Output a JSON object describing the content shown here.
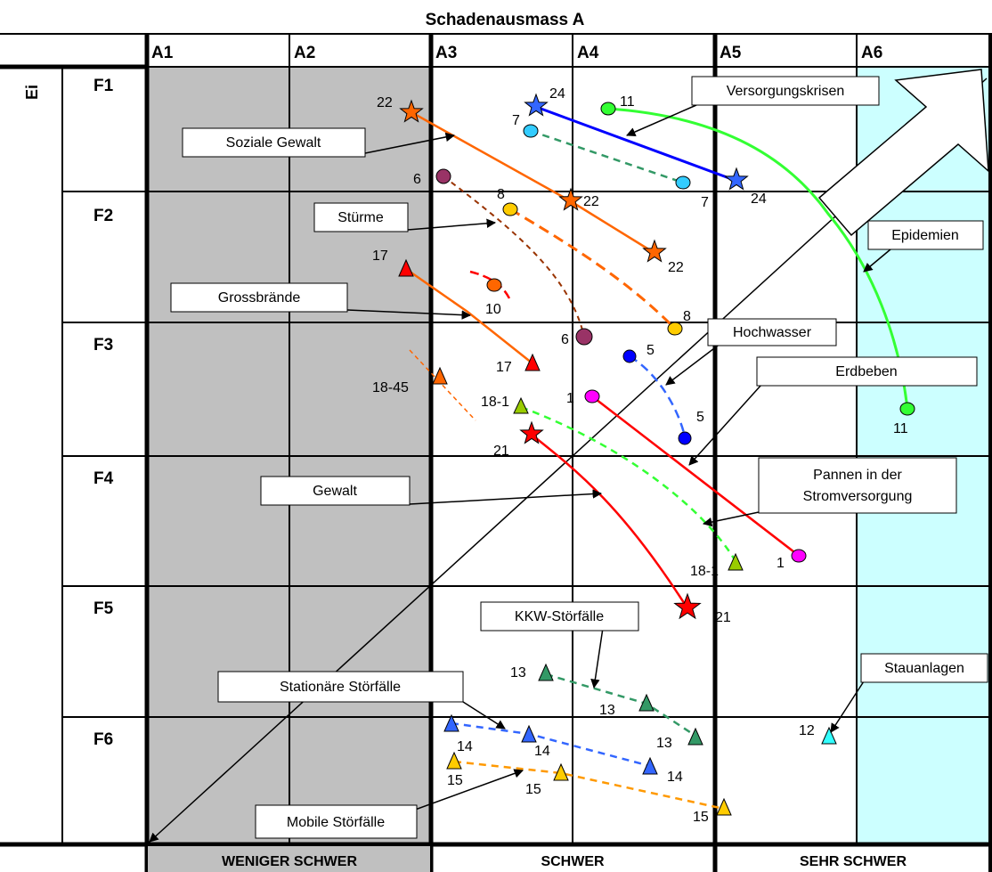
{
  "header": {
    "title": "Schadenausmass A",
    "columns": [
      "A1",
      "A2",
      "A3",
      "A4",
      "A5",
      "A6"
    ],
    "left_axis_label": "Ei"
  },
  "rows": [
    "F1",
    "F2",
    "F3",
    "F4",
    "F5",
    "F6"
  ],
  "footer": {
    "groups": [
      "WENIGER SCHWER",
      "SCHWER",
      "SEHR SCHWER"
    ]
  },
  "callouts": {
    "versorgungskrisen": "Versorgungskrisen",
    "soziale_gewalt": "Soziale Gewalt",
    "stuerme": "Stürme",
    "epidemien": "Epidemien",
    "grossbraende": "Grossbrände",
    "hochwasser": "Hochwasser",
    "erdbeben": "Erdbeben",
    "pannen_l1": "Pannen in der",
    "pannen_l2": "Stromversorgung",
    "gewalt": "Gewalt",
    "kkw": "KKW-Störfälle",
    "stationaere": "Stationäre Störfälle",
    "stauanlagen": "Stauanlagen",
    "mobile": "Mobile Störfälle"
  },
  "labels": {
    "l22a": "22",
    "l24a": "24",
    "l11a": "11",
    "l7a": "7",
    "l7b": "7",
    "l24b": "24",
    "l6a": "6",
    "l8a": "8",
    "l22b": "22",
    "l22c": "22",
    "l17a": "17",
    "l10": "10",
    "l8b": "8",
    "l6b": "6",
    "l5a": "5",
    "l5b": "5",
    "l17b": "17",
    "l1845": "18-45",
    "l1a": "1",
    "l181a": "18-1",
    "l21a": "21",
    "l11b": "11",
    "l181b": "18-1",
    "l1b": "1",
    "l21b": "21",
    "l13a": "13",
    "l13b": "13",
    "l13c": "13",
    "l12": "12",
    "l14a": "14",
    "l14b": "14",
    "l14c": "14",
    "l15a": "15",
    "l15b": "15",
    "l15c": "15"
  },
  "colors": {
    "grey_zone": "#c0c0c0",
    "cyan_zone": "#ccffff",
    "orange": "#ff6600",
    "blue": "#3366ff",
    "green": "#33ff33",
    "red": "#ff0000",
    "brown": "#993300",
    "teal": "#339966"
  }
}
